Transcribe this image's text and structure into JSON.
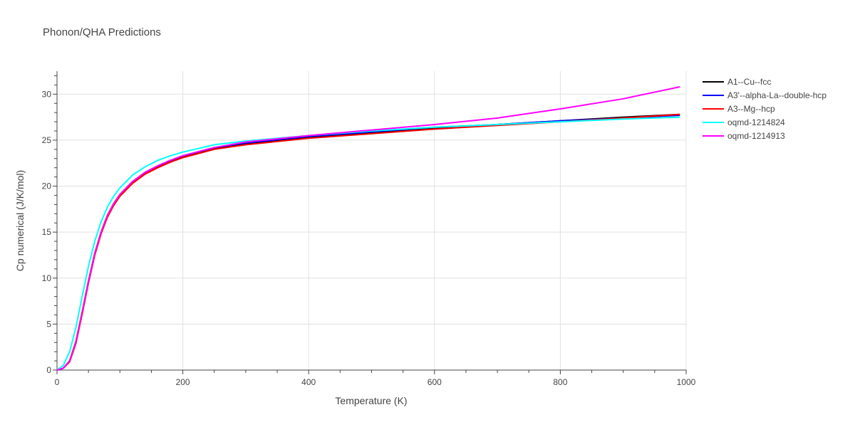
{
  "chart_data": {
    "type": "line",
    "title": "Phonon/QHA Predictions",
    "xlabel": "Temperature (K)",
    "ylabel": "Cp numerical (J/K/mol)",
    "xlim": [
      0,
      1000
    ],
    "ylim": [
      0,
      32.5
    ],
    "xticks": [
      0,
      200,
      400,
      600,
      800,
      1000
    ],
    "yticks": [
      0,
      5,
      10,
      15,
      20,
      25,
      30
    ],
    "grid": true,
    "legend_position": "top-right outside",
    "series": [
      {
        "name": "A1--Cu--fcc",
        "color": "#000000",
        "x": [
          0,
          10,
          20,
          30,
          40,
          50,
          60,
          70,
          80,
          90,
          100,
          120,
          140,
          160,
          180,
          200,
          250,
          300,
          400,
          500,
          600,
          700,
          800,
          900,
          990
        ],
        "y": [
          0,
          0.2,
          1.0,
          3.0,
          6.2,
          9.6,
          12.6,
          14.9,
          16.7,
          18.0,
          19.0,
          20.4,
          21.4,
          22.1,
          22.7,
          23.2,
          24.1,
          24.6,
          25.3,
          25.8,
          26.3,
          26.7,
          27.1,
          27.5,
          27.8
        ]
      },
      {
        "name": "A3'--alpha-La--double-hcp",
        "color": "#0000ff",
        "x": [
          0,
          10,
          20,
          30,
          40,
          50,
          60,
          70,
          80,
          90,
          100,
          120,
          140,
          160,
          180,
          200,
          250,
          300,
          400,
          500,
          600,
          700,
          800,
          900,
          990
        ],
        "y": [
          0,
          0.2,
          1.0,
          3.1,
          6.3,
          9.7,
          12.7,
          15.0,
          16.8,
          18.1,
          19.1,
          20.5,
          21.5,
          22.2,
          22.8,
          23.3,
          24.2,
          24.7,
          25.4,
          25.9,
          26.4,
          26.7,
          27.1,
          27.4,
          27.7
        ]
      },
      {
        "name": "A3--Mg--hcp",
        "color": "#ff0000",
        "x": [
          0,
          10,
          20,
          30,
          40,
          50,
          60,
          70,
          80,
          90,
          100,
          120,
          140,
          160,
          180,
          200,
          250,
          300,
          400,
          500,
          600,
          700,
          800,
          900,
          990
        ],
        "y": [
          0,
          0.2,
          0.9,
          2.9,
          6.1,
          9.5,
          12.5,
          14.8,
          16.6,
          17.9,
          18.9,
          20.3,
          21.3,
          22.0,
          22.6,
          23.1,
          24.0,
          24.5,
          25.2,
          25.7,
          26.2,
          26.6,
          27.0,
          27.4,
          27.8
        ]
      },
      {
        "name": "oqmd-1214824",
        "color": "#00ffff",
        "x": [
          0,
          10,
          20,
          30,
          40,
          50,
          60,
          70,
          80,
          90,
          100,
          120,
          140,
          160,
          180,
          200,
          250,
          300,
          400,
          500,
          600,
          700,
          800,
          900,
          990
        ],
        "y": [
          0,
          0.5,
          2.0,
          4.6,
          8.0,
          11.3,
          14.0,
          16.1,
          17.7,
          18.9,
          19.8,
          21.2,
          22.1,
          22.8,
          23.3,
          23.7,
          24.5,
          24.9,
          25.5,
          26.0,
          26.4,
          26.7,
          27.0,
          27.3,
          27.5
        ]
      },
      {
        "name": "oqmd-1214913",
        "color": "#ff00ff",
        "x": [
          0,
          10,
          20,
          30,
          40,
          50,
          60,
          70,
          80,
          90,
          100,
          120,
          140,
          160,
          180,
          200,
          250,
          300,
          400,
          500,
          600,
          700,
          800,
          900,
          990
        ],
        "y": [
          0,
          0.2,
          1.0,
          3.1,
          6.3,
          9.7,
          12.7,
          15.0,
          16.8,
          18.1,
          19.1,
          20.5,
          21.5,
          22.2,
          22.8,
          23.3,
          24.2,
          24.8,
          25.5,
          26.1,
          26.7,
          27.4,
          28.4,
          29.5,
          30.8
        ]
      }
    ]
  }
}
